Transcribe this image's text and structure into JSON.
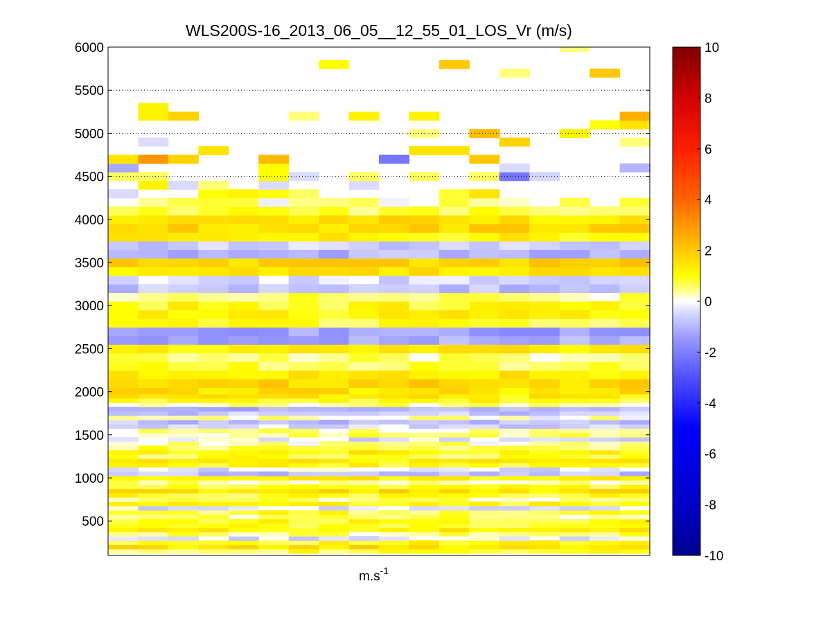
{
  "chart_data": {
    "type": "heatmap",
    "title": "WLS200S-16_2013_06_05__12_55_01_LOS_Vr (m/s)",
    "xlabel": "m.s",
    "xlabel_superscript": "-1",
    "ylabel": "",
    "ylim": [
      100,
      6000
    ],
    "yticks": [
      500,
      1000,
      1500,
      2000,
      2500,
      3000,
      3500,
      4000,
      4500,
      5000,
      5500,
      6000
    ],
    "grid": "horizontal dotted gridlines at y = 4500, 5000, 5500 (upper region)",
    "colorbar": {
      "placement": "right",
      "range": [
        -10,
        10
      ],
      "ticks": [
        -10,
        -8,
        -6,
        -4,
        -2,
        0,
        2,
        4,
        6,
        8,
        10
      ],
      "colormap": "blue-white-yellow-red (dark blue at -10, white near 0, yellow ~1, orange ~3-4, red ~6-8, dark red at 10)"
    },
    "n_columns": 18,
    "gate_altitudes": [
      150,
      200,
      250,
      300,
      350,
      400,
      450,
      500,
      550,
      600,
      650,
      700,
      750,
      800,
      850,
      900,
      950,
      1000,
      1050,
      1100,
      1150,
      1200,
      1250,
      1300,
      1350,
      1400,
      1450,
      1500,
      1550,
      1600,
      1650,
      1700,
      1750,
      1800,
      1850,
      1900,
      1950,
      2000,
      2100,
      2200,
      2300,
      2400,
      2500,
      2600,
      2700,
      2800,
      2900,
      3000,
      3100,
      3200,
      3300,
      3400,
      3500,
      3600,
      3700,
      3800,
      3900,
      4000,
      4100,
      4200,
      4300,
      4400,
      4500,
      4600,
      4700,
      4800,
      4900,
      5000,
      5100,
      5200,
      5300,
      5400,
      5500,
      5600,
      5700,
      5800,
      5900,
      6000
    ],
    "row_base_values": [
      0.8,
      1.5,
      1.0,
      -0.3,
      0.5,
      1.2,
      0.8,
      1.0,
      0.5,
      0.8,
      -0.3,
      1.0,
      0.5,
      0.9,
      1.5,
      0.8,
      0.3,
      1.2,
      -0.8,
      -0.3,
      1.0,
      1.3,
      0.8,
      1.2,
      0.6,
      0.3,
      -0.3,
      0.5,
      0.3,
      -0.5,
      -0.8,
      0.2,
      -0.7,
      -1.0,
      0.3,
      1.0,
      1.3,
      1.5,
      1.7,
      1.3,
      0.8,
      0.4,
      1.3,
      -1.2,
      -1.4,
      0.8,
      1.2,
      1.0,
      0.5,
      -0.8,
      -0.4,
      1.4,
      1.8,
      -1.0,
      -0.6,
      1.2,
      1.7,
      1.5,
      0.8,
      0.3,
      0.0,
      0.0,
      0.0,
      0.0,
      0.0,
      0.0,
      0.0,
      0.0,
      0.0,
      0.0,
      0.0,
      0.0,
      0.0,
      0.0,
      0.0,
      0.0,
      0.0,
      0.0
    ],
    "sparse_cells": [
      {
        "col": 0,
        "alt": 4300,
        "value": -0.4
      },
      {
        "col": 3,
        "alt": 4300,
        "value": 1.0
      },
      {
        "col": 4,
        "alt": 4300,
        "value": 1.2
      },
      {
        "col": 5,
        "alt": 4300,
        "value": 1.0
      },
      {
        "col": 6,
        "alt": 4300,
        "value": 0.6
      },
      {
        "col": 11,
        "alt": 4300,
        "value": 0.8
      },
      {
        "col": 12,
        "alt": 4300,
        "value": 1.5
      },
      {
        "col": 1,
        "alt": 4400,
        "value": 1.2
      },
      {
        "col": 2,
        "alt": 4400,
        "value": -0.4
      },
      {
        "col": 3,
        "alt": 4400,
        "value": 0.5
      },
      {
        "col": 5,
        "alt": 4400,
        "value": -0.4
      },
      {
        "col": 8,
        "alt": 4400,
        "value": -0.4
      },
      {
        "col": 0,
        "alt": 4500,
        "value": 0.6
      },
      {
        "col": 1,
        "alt": 4500,
        "value": 0.6
      },
      {
        "col": 5,
        "alt": 4500,
        "value": 1.0
      },
      {
        "col": 6,
        "alt": 4500,
        "value": -0.4
      },
      {
        "col": 8,
        "alt": 4500,
        "value": 0.6
      },
      {
        "col": 10,
        "alt": 4500,
        "value": 0.6
      },
      {
        "col": 12,
        "alt": 4500,
        "value": 0.6
      },
      {
        "col": 13,
        "alt": 4500,
        "value": -2.2
      },
      {
        "col": 14,
        "alt": 4500,
        "value": -0.5
      },
      {
        "col": 0,
        "alt": 4600,
        "value": -1.2
      },
      {
        "col": 5,
        "alt": 4600,
        "value": 1.0
      },
      {
        "col": 13,
        "alt": 4600,
        "value": -0.4
      },
      {
        "col": 17,
        "alt": 4600,
        "value": -1.0
      },
      {
        "col": 0,
        "alt": 4700,
        "value": 1.5
      },
      {
        "col": 1,
        "alt": 4700,
        "value": 3.0
      },
      {
        "col": 2,
        "alt": 4700,
        "value": 1.8
      },
      {
        "col": 5,
        "alt": 4700,
        "value": 2.3
      },
      {
        "col": 9,
        "alt": 4700,
        "value": -2.2
      },
      {
        "col": 12,
        "alt": 4700,
        "value": 2.0
      },
      {
        "col": 3,
        "alt": 4800,
        "value": 1.5
      },
      {
        "col": 10,
        "alt": 4800,
        "value": 1.5
      },
      {
        "col": 11,
        "alt": 4800,
        "value": 1.5
      },
      {
        "col": 1,
        "alt": 4900,
        "value": -0.4
      },
      {
        "col": 13,
        "alt": 4900,
        "value": 1.8
      },
      {
        "col": 17,
        "alt": 4900,
        "value": 0.5
      },
      {
        "col": 10,
        "alt": 5000,
        "value": 0.5
      },
      {
        "col": 12,
        "alt": 5000,
        "value": 2.2
      },
      {
        "col": 15,
        "alt": 5000,
        "value": 1.2
      },
      {
        "col": 16,
        "alt": 5100,
        "value": 1.0
      },
      {
        "col": 17,
        "alt": 5100,
        "value": 1.5
      },
      {
        "col": 1,
        "alt": 5200,
        "value": 1.2
      },
      {
        "col": 2,
        "alt": 5200,
        "value": 1.8
      },
      {
        "col": 6,
        "alt": 5200,
        "value": 0.5
      },
      {
        "col": 8,
        "alt": 5200,
        "value": 1.2
      },
      {
        "col": 10,
        "alt": 5200,
        "value": 1.2
      },
      {
        "col": 17,
        "alt": 5200,
        "value": 2.5
      },
      {
        "col": 1,
        "alt": 5300,
        "value": 1.2
      },
      {
        "col": 13,
        "alt": 5700,
        "value": 0.5
      },
      {
        "col": 16,
        "alt": 5700,
        "value": 2.0
      },
      {
        "col": 7,
        "alt": 5800,
        "value": 1.0
      },
      {
        "col": 11,
        "alt": 5800,
        "value": 2.0
      },
      {
        "col": 15,
        "alt": 6000,
        "value": 0.5
      }
    ]
  },
  "colors": {
    "negative_end": "#00008f",
    "blue_mid": "#5a5aff",
    "white": "#ffffff",
    "yellow": "#ffff00",
    "orange": "#ff8000",
    "red": "#ff0000",
    "positive_end": "#800000",
    "grid": "#000000"
  }
}
